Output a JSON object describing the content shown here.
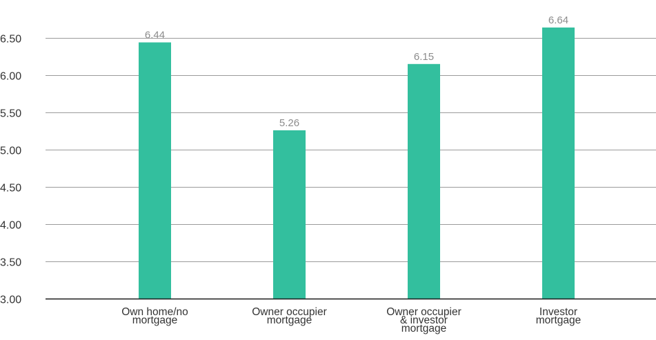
{
  "chart_data": {
    "type": "bar",
    "categories": [
      "Own home/no mortgage",
      "Owner occupier mortgage",
      "Owner occupier & investor mortgage",
      "Investor mortgage"
    ],
    "category_lines": [
      [
        "Own home/no",
        "mortgage"
      ],
      [
        "Owner occupier",
        "mortgage"
      ],
      [
        "Owner occupier",
        "& investor",
        "mortgage"
      ],
      [
        "Investor",
        "mortgage"
      ]
    ],
    "values": [
      6.44,
      5.26,
      6.15,
      6.64
    ],
    "value_labels": [
      "6.44",
      "5.26",
      "6.15",
      "6.64"
    ],
    "ylim": [
      3.0,
      6.75
    ],
    "yticks": [
      3.0,
      3.5,
      4.0,
      4.5,
      5.0,
      5.5,
      6.0,
      6.5
    ],
    "ytick_labels": [
      "3.00",
      "3.50",
      "4.00",
      "4.50",
      "5.00",
      "5.50",
      "6.00",
      "6.50"
    ],
    "grid": true,
    "legend": "none",
    "title": "",
    "xlabel": "",
    "ylabel": "",
    "bar_color": "#33bf9e",
    "value_label_color": "#8c8c8c"
  }
}
